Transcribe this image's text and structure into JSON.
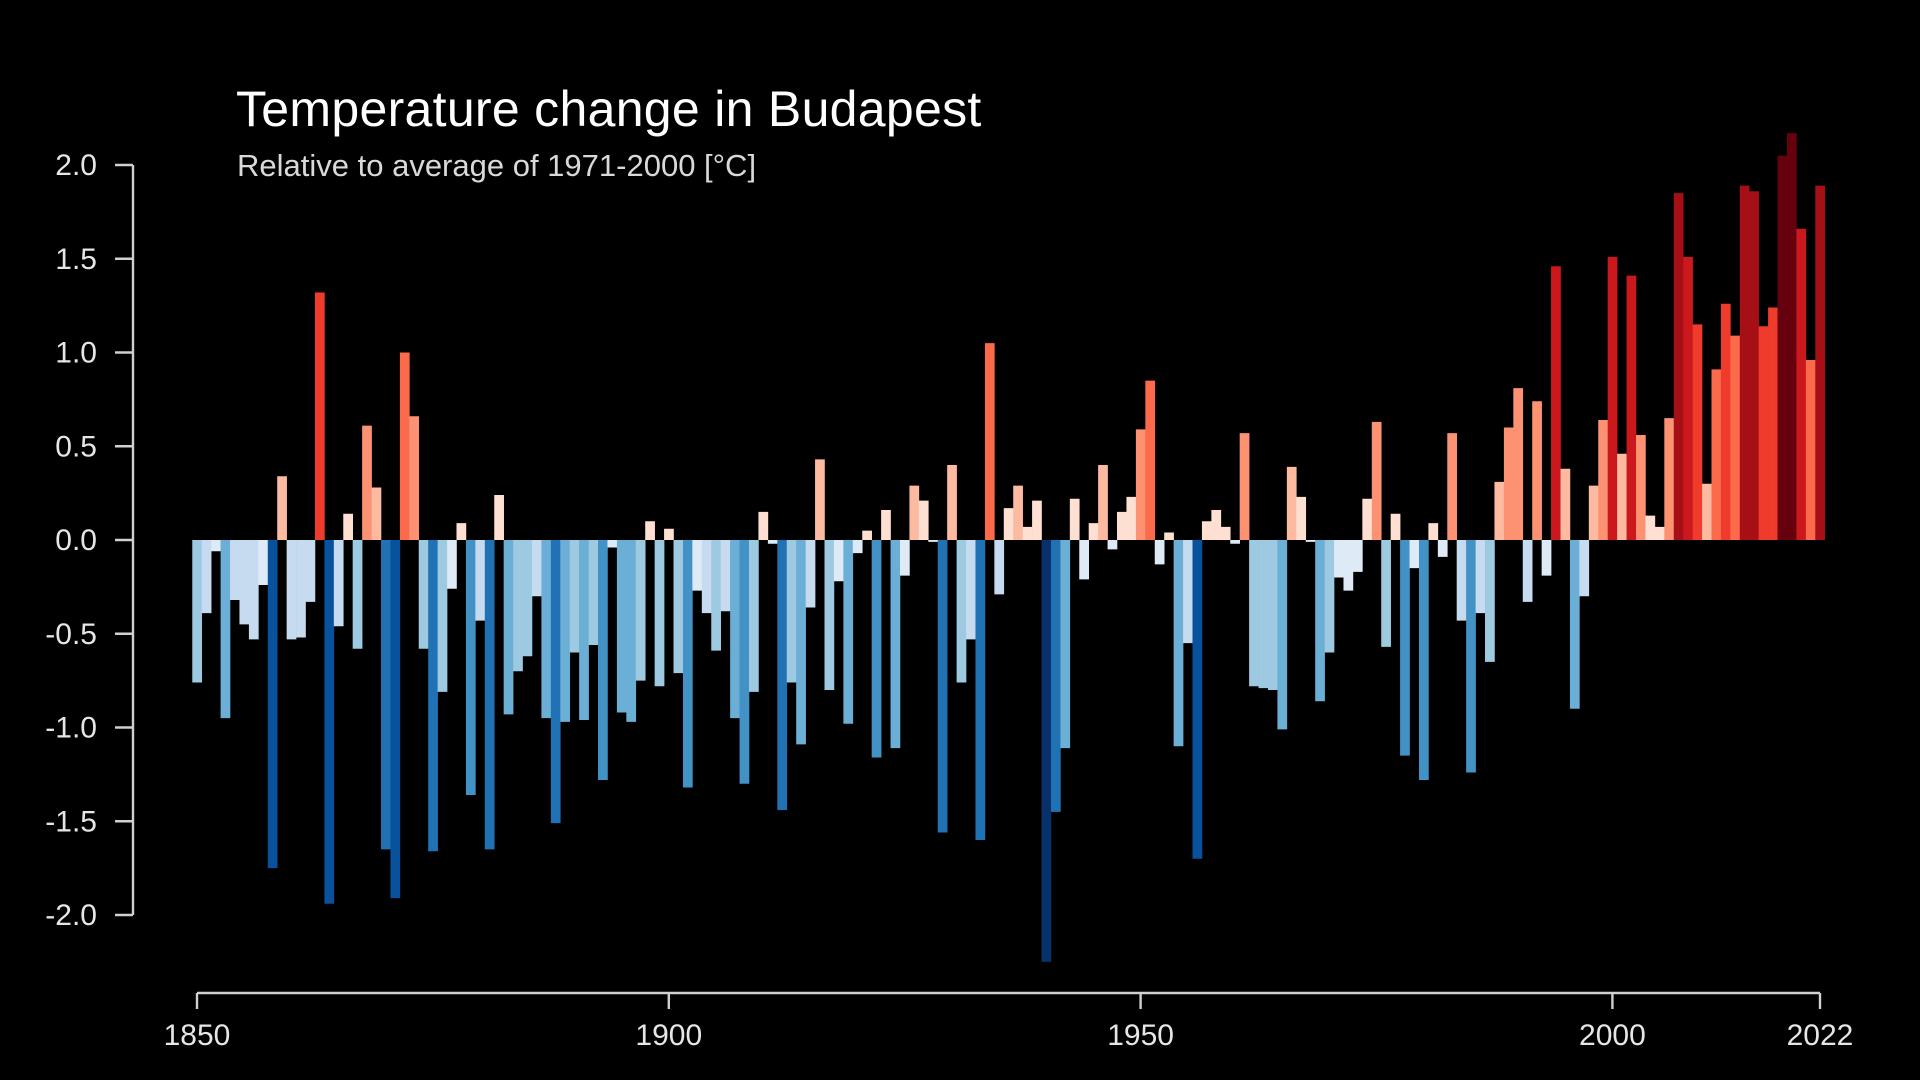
{
  "chart_data": {
    "type": "bar",
    "title": "Temperature change in Budapest",
    "subtitle": "Relative to average of 1971-2000  [°C]",
    "xlabel": "",
    "ylabel": "",
    "ylim": [
      -2.0,
      2.0
    ],
    "yticks": [
      "2.0",
      "1.5",
      "1.0",
      "0.5",
      "0.0",
      "-0.5",
      "-1.0",
      "-1.5",
      "-2.0"
    ],
    "xticks": [
      "1850",
      "1900",
      "1950",
      "2000",
      "2022"
    ],
    "x_start": 1850,
    "x_end": 2022,
    "grid": false,
    "legend": "none",
    "colors": {
      "background": "#000000",
      "warm": [
        "#fee0d2",
        "#fcbba1",
        "#fc9272",
        "#fb6a4a",
        "#ef3b2c",
        "#cb181d",
        "#a50f15",
        "#67000d"
      ],
      "cool": [
        "#deebf7",
        "#c6dbef",
        "#9ecae1",
        "#6baed6",
        "#4292c6",
        "#2171b5",
        "#08519c",
        "#08306b"
      ]
    },
    "categories": [
      1850,
      1851,
      1852,
      1853,
      1854,
      1855,
      1856,
      1857,
      1858,
      1859,
      1860,
      1861,
      1862,
      1863,
      1864,
      1865,
      1866,
      1867,
      1868,
      1869,
      1870,
      1871,
      1872,
      1873,
      1874,
      1875,
      1876,
      1877,
      1878,
      1879,
      1880,
      1881,
      1882,
      1883,
      1884,
      1885,
      1886,
      1887,
      1888,
      1889,
      1890,
      1891,
      1892,
      1893,
      1894,
      1895,
      1896,
      1897,
      1898,
      1899,
      1900,
      1901,
      1902,
      1903,
      1904,
      1905,
      1906,
      1907,
      1908,
      1909,
      1910,
      1911,
      1912,
      1913,
      1914,
      1915,
      1916,
      1917,
      1918,
      1919,
      1920,
      1921,
      1922,
      1923,
      1924,
      1925,
      1926,
      1927,
      1928,
      1929,
      1930,
      1931,
      1932,
      1933,
      1934,
      1935,
      1936,
      1937,
      1938,
      1939,
      1940,
      1941,
      1942,
      1943,
      1944,
      1945,
      1946,
      1947,
      1948,
      1949,
      1950,
      1951,
      1952,
      1953,
      1954,
      1955,
      1956,
      1957,
      1958,
      1959,
      1960,
      1961,
      1962,
      1963,
      1964,
      1965,
      1966,
      1967,
      1968,
      1969,
      1970,
      1971,
      1972,
      1973,
      1974,
      1975,
      1976,
      1977,
      1978,
      1979,
      1980,
      1981,
      1982,
      1983,
      1984,
      1985,
      1986,
      1987,
      1988,
      1989,
      1990,
      1991,
      1992,
      1993,
      1994,
      1995,
      1996,
      1997,
      1998,
      1999,
      2000,
      2001,
      2002,
      2003,
      2004,
      2005,
      2006,
      2007,
      2008,
      2009,
      2010,
      2011,
      2012,
      2013,
      2014,
      2015,
      2016,
      2017,
      2018,
      2019,
      2020,
      2021,
      2022
    ],
    "values": [
      -0.76,
      -0.39,
      -0.06,
      -0.95,
      -0.32,
      -0.45,
      -0.53,
      -0.24,
      -1.75,
      0.34,
      -0.53,
      -0.52,
      -0.33,
      1.32,
      -1.94,
      -0.46,
      0.14,
      -0.58,
      0.61,
      0.28,
      -1.65,
      -1.91,
      1.0,
      0.66,
      -0.58,
      -1.66,
      -0.81,
      -0.26,
      0.09,
      -1.36,
      -0.43,
      -1.65,
      0.24,
      -0.93,
      -0.7,
      -0.62,
      -0.3,
      -0.95,
      -1.51,
      -0.97,
      -0.6,
      -0.96,
      -0.56,
      -1.28,
      -0.04,
      -0.92,
      -0.97,
      -0.75,
      0.1,
      -0.78,
      0.06,
      -0.71,
      -1.32,
      -0.27,
      -0.39,
      -0.59,
      -0.38,
      -0.95,
      -1.3,
      -0.81,
      0.15,
      -0.02,
      -1.44,
      -0.76,
      -1.09,
      -0.36,
      0.43,
      -0.8,
      -0.22,
      -0.98,
      -0.07,
      0.05,
      -1.16,
      0.16,
      -1.11,
      -0.19,
      0.29,
      0.21,
      -0.01,
      -1.56,
      0.4,
      -0.76,
      -0.53,
      -1.6,
      1.05,
      -0.29,
      0.17,
      0.29,
      0.07,
      0.21,
      -2.25,
      -1.45,
      -1.11,
      0.22,
      -0.21,
      0.09,
      0.4,
      -0.05,
      0.15,
      0.23,
      0.59,
      0.85,
      -0.13,
      0.04,
      -1.1,
      -0.55,
      -1.7,
      0.1,
      0.16,
      0.07,
      -0.02,
      0.57,
      -0.78,
      -0.79,
      -0.8,
      -1.01,
      0.39,
      0.23,
      -0.01,
      -0.86,
      -0.6,
      -0.2,
      -0.27,
      -0.17,
      0.22,
      0.63,
      -0.57,
      0.14,
      -1.15,
      -0.15,
      -1.28,
      0.09,
      -0.09,
      0.57,
      -0.43,
      -1.24,
      -0.39,
      -0.65,
      0.31,
      0.6,
      0.81,
      -0.33,
      0.74,
      -0.19,
      1.46,
      0.38,
      -0.9,
      -0.3,
      0.29,
      0.64,
      1.51,
      0.46,
      1.41,
      0.56,
      0.13,
      0.07,
      0.65,
      1.85,
      1.51,
      1.15,
      0.3,
      0.91,
      1.26,
      1.09,
      1.89,
      1.86,
      1.14,
      1.24,
      2.05,
      2.17,
      1.66,
      0.96,
      1.89
    ]
  }
}
